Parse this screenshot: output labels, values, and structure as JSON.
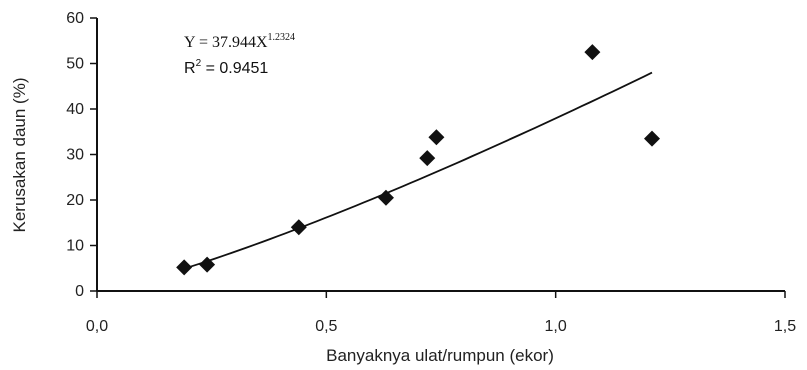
{
  "chart_data": {
    "type": "scatter",
    "xlabel": "Banyaknya ulat/rumpun (ekor)",
    "ylabel": "Kerusakan daun (%)",
    "xlim": [
      0,
      1.5
    ],
    "ylim": [
      0,
      60
    ],
    "x_ticks": [
      "0,0",
      "0,5",
      "1,0",
      "1,5"
    ],
    "y_ticks": [
      "0",
      "10",
      "20",
      "30",
      "40",
      "50",
      "60"
    ],
    "points": [
      {
        "x": 0.19,
        "y": 5.2
      },
      {
        "x": 0.24,
        "y": 5.8
      },
      {
        "x": 0.44,
        "y": 14.0
      },
      {
        "x": 0.63,
        "y": 20.5
      },
      {
        "x": 0.72,
        "y": 29.2
      },
      {
        "x": 0.74,
        "y": 33.8
      },
      {
        "x": 1.08,
        "y": 52.5
      },
      {
        "x": 1.21,
        "y": 33.5
      }
    ],
    "trendline": {
      "type": "power",
      "a": 37.944,
      "b": 1.2324,
      "x_range": [
        0.19,
        1.21
      ]
    },
    "equation": {
      "prefix": "Y = 37.944X",
      "exponent": "1.2324"
    },
    "r_squared": {
      "prefix": "R",
      "sup": "2",
      "value": " = 0.9451"
    },
    "grid": false,
    "legend": "none"
  }
}
